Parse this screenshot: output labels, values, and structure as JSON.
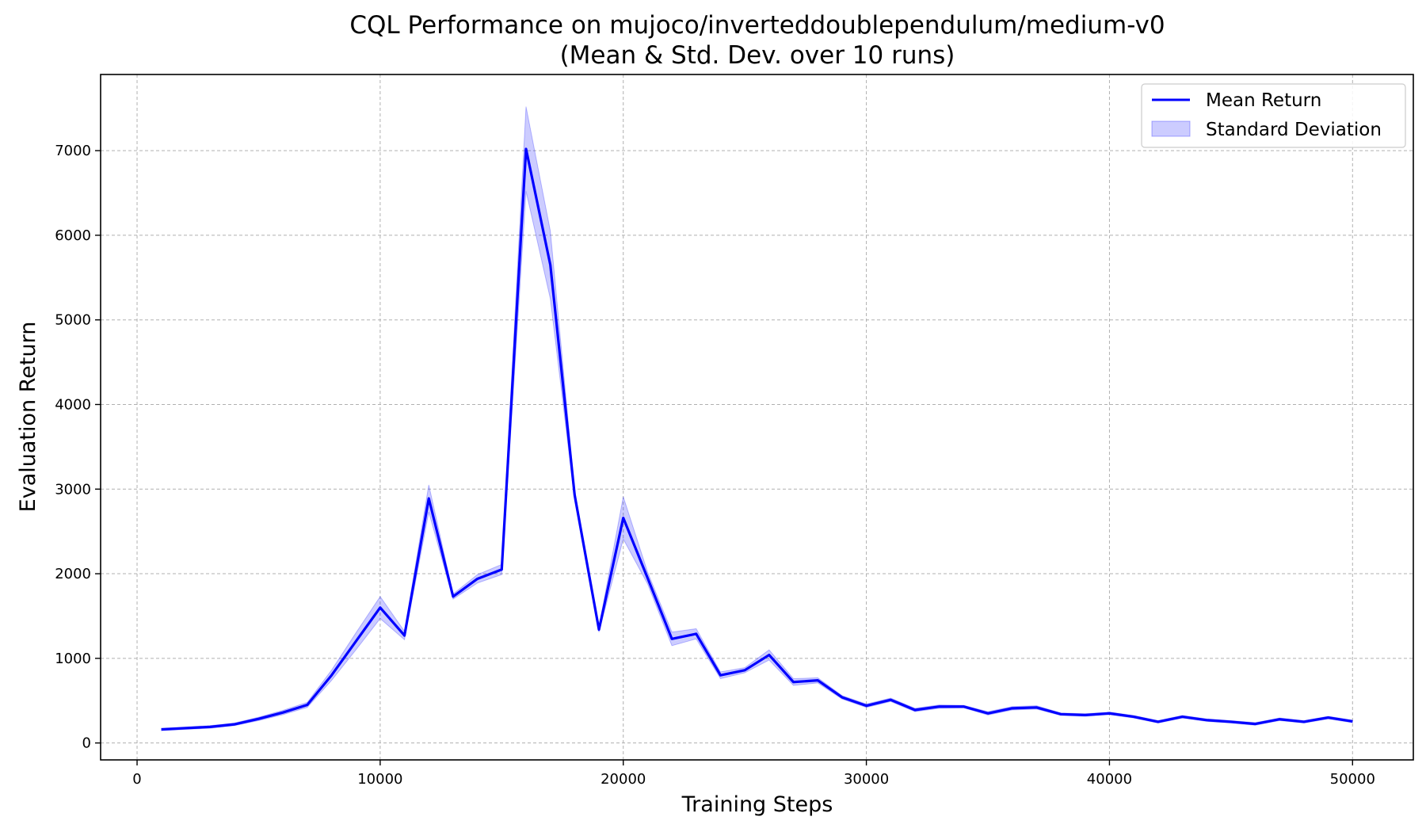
{
  "chart_data": {
    "type": "line",
    "title": [
      "CQL Performance on mujoco/inverteddoublependulum/medium-v0",
      "(Mean & Std. Dev. over 10 runs)"
    ],
    "xlabel": "Training Steps",
    "ylabel": "Evaluation Return",
    "xlim": [
      -1500,
      52500
    ],
    "ylim": [
      -200,
      7900
    ],
    "xticks": [
      0,
      10000,
      20000,
      30000,
      40000,
      50000
    ],
    "yticks": [
      0,
      1000,
      2000,
      3000,
      4000,
      5000,
      6000,
      7000
    ],
    "grid": true,
    "legend": {
      "position": "top-right",
      "entries": [
        {
          "label": "Mean Return",
          "kind": "line"
        },
        {
          "label": "Standard Deviation",
          "kind": "band"
        }
      ]
    },
    "colors": {
      "line": "#0000ff",
      "band": "#0000ff",
      "band_opacity": 0.2
    },
    "x": [
      1000,
      2000,
      3000,
      4000,
      5000,
      6000,
      7000,
      8000,
      9000,
      10000,
      11000,
      12000,
      13000,
      14000,
      15000,
      16000,
      17000,
      18000,
      19000,
      20000,
      21000,
      22000,
      23000,
      24000,
      25000,
      26000,
      27000,
      28000,
      29000,
      30000,
      31000,
      32000,
      33000,
      34000,
      35000,
      36000,
      37000,
      38000,
      39000,
      40000,
      41000,
      42000,
      43000,
      44000,
      45000,
      46000,
      47000,
      48000,
      49000,
      50000
    ],
    "series": [
      {
        "name": "Mean Return",
        "values": [
          160,
          175,
          190,
          220,
          285,
          360,
          450,
          800,
          1200,
          1600,
          1270,
          2890,
          1730,
          1940,
          2050,
          7020,
          5650,
          2930,
          1340,
          2660,
          1950,
          1230,
          1290,
          800,
          860,
          1040,
          720,
          740,
          540,
          440,
          510,
          390,
          430,
          430,
          350,
          410,
          420,
          340,
          330,
          350,
          310,
          250,
          310,
          270,
          250,
          225,
          280,
          250,
          300,
          255
        ],
        "std": [
          15,
          15,
          15,
          15,
          20,
          25,
          30,
          60,
          100,
          130,
          50,
          160,
          30,
          50,
          60,
          500,
          400,
          60,
          30,
          250,
          70,
          80,
          60,
          40,
          30,
          60,
          40,
          30,
          20,
          20,
          20,
          20,
          20,
          15,
          20,
          20,
          20,
          15,
          15,
          15,
          15,
          15,
          15,
          15,
          15,
          15,
          15,
          15,
          15,
          15
        ]
      }
    ]
  }
}
